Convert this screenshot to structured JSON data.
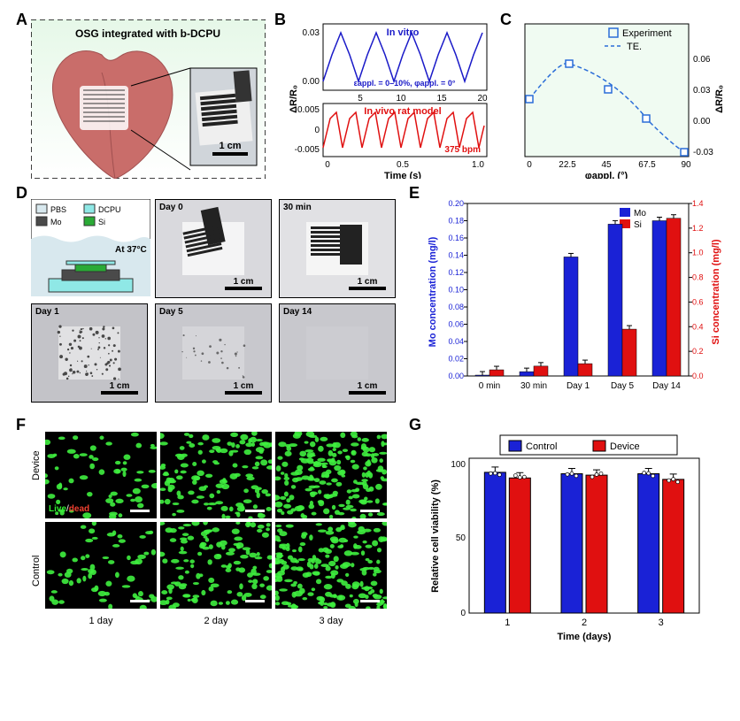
{
  "labels": {
    "A": "A",
    "B": "B",
    "C": "C",
    "D": "D",
    "E": "E",
    "F": "F",
    "G": "G"
  },
  "A": {
    "title": "OSG integrated with b-DCPU",
    "scalebar": "1 cm",
    "heart_color": "#c96d6a",
    "bg_top": "#e6f8e8",
    "bg_bottom": "#ffffff"
  },
  "B": {
    "top_title": "In vitro",
    "top_sub": "εappl. = 0–10%, φappl. = 0°",
    "bottom_title": "In vivo rat model",
    "bottom_sub": "375 bpm",
    "x_label": "Time (s)",
    "y_label": "ΔR/R₀",
    "top_color": "#1a1ac8",
    "bottom_color": "#e01010",
    "top_xticks": [
      "5",
      "10",
      "15",
      "20"
    ],
    "top_yticks": [
      "0.00",
      "0.03"
    ],
    "bottom_xticks": [
      "0",
      "0.5",
      "1.0"
    ],
    "bottom_yticks": [
      "-0.005",
      "0",
      "0.005"
    ]
  },
  "C": {
    "legend_exp": "Experiment",
    "legend_te": "TE.",
    "x_label": "φappl. (°)",
    "y_label": "ΔR/R₀",
    "line_color": "#2a6dd8",
    "marker_color": "#2a6dd8",
    "bg": "#f0fbf2",
    "xticks": [
      "0",
      "22.5",
      "45",
      "67.5",
      "90"
    ],
    "yticks": [
      "-0.03",
      "0.00",
      "0.03",
      "0.06"
    ]
  },
  "D": {
    "diagram_title": "At 37°C",
    "legend": {
      "pbs": "PBS",
      "dcpu": "DCPU",
      "mo": "Mo",
      "si": "Si"
    },
    "colors": {
      "pbs": "#d8e8ee",
      "dcpu": "#8fe8e6",
      "mo": "#4a4a4a",
      "si": "#2aaa36"
    },
    "scalebar": "1 cm",
    "photos": [
      "Day 0",
      "30 min",
      "Day 1",
      "Day 5",
      "Day 14"
    ],
    "photo_bg": [
      "#d9d9dd",
      "#e1e1e4",
      "#c3c3c8",
      "#c8c8cd",
      "#c8c8cd"
    ]
  },
  "E": {
    "y1_label": "Mo concentration (mg/l)",
    "y2_label": "Si concentration (mg/l)",
    "xticks": [
      "0 min",
      "30 min",
      "Day 1",
      "Day 5",
      "Day 14"
    ],
    "mo_color": "#1a22d6",
    "si_color": "#e01010",
    "y1_ticks": [
      "0.00",
      "0.02",
      "0.04",
      "0.06",
      "0.08",
      "0.10",
      "0.12",
      "0.14",
      "0.16",
      "0.18",
      "0.20"
    ],
    "y2_ticks": [
      "0.0",
      "0.2",
      "0.4",
      "0.6",
      "0.8",
      "1.0",
      "1.2",
      "1.4"
    ],
    "mo_vals": [
      0.001,
      0.005,
      0.138,
      0.176,
      0.18
    ],
    "si_vals": [
      0.05,
      0.08,
      0.1,
      0.38,
      1.28
    ]
  },
  "F": {
    "rows": [
      "Device",
      "Control"
    ],
    "cols": [
      "1 day",
      "2 day",
      "3 day"
    ],
    "live_label": "Live",
    "dead_label": "dead",
    "bg": "#000000",
    "cell_color": "#3ff03f",
    "live_color": "#30f030",
    "dead_color": "#f04030"
  },
  "G": {
    "x_label": "Time (days)",
    "y_label": "Relative cell viability (%)",
    "legend": {
      "control": "Control",
      "device": "Device"
    },
    "control_color": "#1a22d6",
    "device_color": "#e01010",
    "xticks": [
      "1",
      "2",
      "3"
    ],
    "yticks": [
      "0",
      "50",
      "100"
    ],
    "values": {
      "control": [
        100,
        99,
        99
      ],
      "device": [
        96,
        98,
        95
      ]
    }
  }
}
